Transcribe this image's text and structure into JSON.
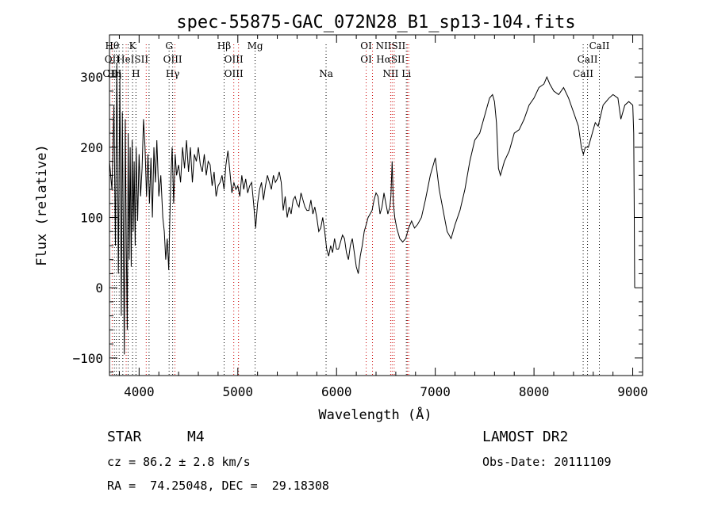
{
  "chart_data": {
    "type": "line",
    "title": "spec-55875-GAC_072N28_B1_sp13-104.fits",
    "xlabel": "Wavelength (Å)",
    "ylabel": "Flux (relative)",
    "xlim": [
      3700,
      9100
    ],
    "ylim": [
      -125,
      360
    ],
    "xticks": [
      4000,
      5000,
      6000,
      7000,
      8000,
      9000
    ],
    "yticks": [
      -100,
      0,
      100,
      200,
      300
    ],
    "xtick_labels": [
      "4000",
      "5000",
      "6000",
      "7000",
      "8000",
      "9000"
    ],
    "ytick_labels": [
      "−100",
      "0",
      "100",
      "200",
      "300"
    ],
    "grid": false,
    "line_color": "#000000",
    "marker_color_absorption": "#000000",
    "marker_color_emission": "#cc0000",
    "series": [
      {
        "values": [
          [
            3700,
            180
          ],
          [
            3725,
            140
          ],
          [
            3745,
            260
          ],
          [
            3760,
            60
          ],
          [
            3775,
            320
          ],
          [
            3790,
            20
          ],
          [
            3805,
            300
          ],
          [
            3820,
            -40
          ],
          [
            3830,
            250
          ],
          [
            3840,
            90
          ],
          [
            3850,
            -95
          ],
          [
            3860,
            240
          ],
          [
            3870,
            60
          ],
          [
            3880,
            -60
          ],
          [
            3890,
            220
          ],
          [
            3900,
            40
          ],
          [
            3910,
            200
          ],
          [
            3920,
            30
          ],
          [
            3930,
            210
          ],
          [
            3940,
            80
          ],
          [
            3950,
            180
          ],
          [
            3960,
            60
          ],
          [
            3970,
            200
          ],
          [
            3985,
            95
          ],
          [
            4000,
            190
          ],
          [
            4015,
            130
          ],
          [
            4030,
            170
          ],
          [
            4045,
            240
          ],
          [
            4060,
            200
          ],
          [
            4075,
            130
          ],
          [
            4090,
            190
          ],
          [
            4105,
            120
          ],
          [
            4120,
            185
          ],
          [
            4135,
            100
          ],
          [
            4150,
            200
          ],
          [
            4165,
            150
          ],
          [
            4180,
            210
          ],
          [
            4200,
            130
          ],
          [
            4220,
            160
          ],
          [
            4240,
            100
          ],
          [
            4255,
            80
          ],
          [
            4270,
            40
          ],
          [
            4285,
            70
          ],
          [
            4300,
            25
          ],
          [
            4310,
            90
          ],
          [
            4320,
            150
          ],
          [
            4335,
            200
          ],
          [
            4350,
            120
          ],
          [
            4365,
            190
          ],
          [
            4380,
            160
          ],
          [
            4400,
            175
          ],
          [
            4420,
            150
          ],
          [
            4440,
            200
          ],
          [
            4460,
            170
          ],
          [
            4480,
            210
          ],
          [
            4500,
            165
          ],
          [
            4520,
            200
          ],
          [
            4540,
            150
          ],
          [
            4560,
            190
          ],
          [
            4580,
            180
          ],
          [
            4600,
            200
          ],
          [
            4620,
            175
          ],
          [
            4640,
            165
          ],
          [
            4660,
            190
          ],
          [
            4680,
            160
          ],
          [
            4700,
            180
          ],
          [
            4720,
            175
          ],
          [
            4740,
            145
          ],
          [
            4760,
            165
          ],
          [
            4780,
            130
          ],
          [
            4800,
            145
          ],
          [
            4820,
            150
          ],
          [
            4840,
            160
          ],
          [
            4860,
            140
          ],
          [
            4880,
            175
          ],
          [
            4900,
            195
          ],
          [
            4920,
            165
          ],
          [
            4940,
            135
          ],
          [
            4960,
            150
          ],
          [
            4980,
            140
          ],
          [
            5000,
            145
          ],
          [
            5020,
            130
          ],
          [
            5040,
            160
          ],
          [
            5060,
            140
          ],
          [
            5080,
            155
          ],
          [
            5100,
            135
          ],
          [
            5120,
            145
          ],
          [
            5140,
            150
          ],
          [
            5160,
            120
          ],
          [
            5180,
            85
          ],
          [
            5200,
            120
          ],
          [
            5220,
            140
          ],
          [
            5240,
            150
          ],
          [
            5260,
            125
          ],
          [
            5280,
            145
          ],
          [
            5300,
            160
          ],
          [
            5320,
            150
          ],
          [
            5340,
            140
          ],
          [
            5360,
            160
          ],
          [
            5380,
            150
          ],
          [
            5400,
            155
          ],
          [
            5420,
            165
          ],
          [
            5440,
            150
          ],
          [
            5460,
            110
          ],
          [
            5480,
            130
          ],
          [
            5500,
            100
          ],
          [
            5520,
            115
          ],
          [
            5540,
            105
          ],
          [
            5560,
            125
          ],
          [
            5580,
            130
          ],
          [
            5600,
            120
          ],
          [
            5620,
            115
          ],
          [
            5640,
            135
          ],
          [
            5660,
            125
          ],
          [
            5680,
            115
          ],
          [
            5700,
            110
          ],
          [
            5720,
            110
          ],
          [
            5740,
            125
          ],
          [
            5760,
            105
          ],
          [
            5780,
            115
          ],
          [
            5800,
            100
          ],
          [
            5820,
            80
          ],
          [
            5840,
            85
          ],
          [
            5860,
            100
          ],
          [
            5880,
            80
          ],
          [
            5900,
            55
          ],
          [
            5920,
            45
          ],
          [
            5940,
            60
          ],
          [
            5960,
            50
          ],
          [
            5980,
            70
          ],
          [
            6000,
            55
          ],
          [
            6020,
            55
          ],
          [
            6040,
            65
          ],
          [
            6060,
            75
          ],
          [
            6080,
            70
          ],
          [
            6100,
            50
          ],
          [
            6120,
            40
          ],
          [
            6140,
            60
          ],
          [
            6160,
            70
          ],
          [
            6180,
            50
          ],
          [
            6200,
            30
          ],
          [
            6220,
            20
          ],
          [
            6240,
            45
          ],
          [
            6260,
            60
          ],
          [
            6280,
            80
          ],
          [
            6300,
            90
          ],
          [
            6320,
            100
          ],
          [
            6340,
            105
          ],
          [
            6360,
            110
          ],
          [
            6380,
            125
          ],
          [
            6400,
            135
          ],
          [
            6420,
            130
          ],
          [
            6440,
            105
          ],
          [
            6460,
            115
          ],
          [
            6480,
            135
          ],
          [
            6500,
            120
          ],
          [
            6520,
            105
          ],
          [
            6540,
            115
          ],
          [
            6550,
            130
          ],
          [
            6563,
            180
          ],
          [
            6575,
            120
          ],
          [
            6590,
            100
          ],
          [
            6610,
            85
          ],
          [
            6640,
            70
          ],
          [
            6670,
            65
          ],
          [
            6700,
            70
          ],
          [
            6730,
            85
          ],
          [
            6760,
            95
          ],
          [
            6790,
            85
          ],
          [
            6820,
            90
          ],
          [
            6860,
            100
          ],
          [
            6900,
            125
          ],
          [
            6950,
            160
          ],
          [
            7000,
            185
          ],
          [
            7040,
            140
          ],
          [
            7080,
            110
          ],
          [
            7120,
            80
          ],
          [
            7160,
            70
          ],
          [
            7200,
            90
          ],
          [
            7250,
            110
          ],
          [
            7300,
            140
          ],
          [
            7350,
            180
          ],
          [
            7400,
            210
          ],
          [
            7450,
            220
          ],
          [
            7500,
            245
          ],
          [
            7550,
            270
          ],
          [
            7580,
            275
          ],
          [
            7600,
            265
          ],
          [
            7620,
            235
          ],
          [
            7640,
            170
          ],
          [
            7660,
            160
          ],
          [
            7700,
            180
          ],
          [
            7750,
            195
          ],
          [
            7800,
            220
          ],
          [
            7850,
            225
          ],
          [
            7900,
            240
          ],
          [
            7950,
            260
          ],
          [
            8000,
            270
          ],
          [
            8050,
            285
          ],
          [
            8100,
            290
          ],
          [
            8130,
            300
          ],
          [
            8160,
            290
          ],
          [
            8200,
            280
          ],
          [
            8250,
            275
          ],
          [
            8300,
            285
          ],
          [
            8350,
            270
          ],
          [
            8400,
            250
          ],
          [
            8450,
            230
          ],
          [
            8480,
            200
          ],
          [
            8500,
            190
          ],
          [
            8520,
            200
          ],
          [
            8550,
            200
          ],
          [
            8580,
            215
          ],
          [
            8620,
            235
          ],
          [
            8650,
            230
          ],
          [
            8700,
            260
          ],
          [
            8760,
            270
          ],
          [
            8800,
            275
          ],
          [
            8850,
            270
          ],
          [
            8880,
            240
          ],
          [
            8920,
            260
          ],
          [
            8960,
            265
          ],
          [
            9000,
            260
          ],
          [
            9010,
            220
          ],
          [
            9015,
            120
          ],
          [
            9020,
            0
          ]
        ]
      }
    ],
    "line_markers": [
      {
        "wl": 3727,
        "labels": [
          "Hθ",
          "OII",
          "OIII"
        ],
        "type": "emission"
      },
      {
        "wl": 3750,
        "labels": [
          "",
          "",
          "Hη"
        ],
        "type": "absorption"
      },
      {
        "wl": 3770,
        "labels": [
          "",
          "",
          ""
        ],
        "type": "absorption"
      },
      {
        "wl": 3798,
        "labels": [
          "",
          "",
          ""
        ],
        "type": "absorption"
      },
      {
        "wl": 3835,
        "labels": [
          "",
          "",
          ""
        ],
        "type": "absorption"
      },
      {
        "wl": 3869,
        "labels": [
          "",
          "",
          ""
        ],
        "type": "emission"
      },
      {
        "wl": 3889,
        "labels": [
          "",
          "",
          ""
        ],
        "type": "absorption"
      },
      {
        "wl": 3934,
        "labels": [
          "K",
          "HeISII",
          ""
        ],
        "type": "absorption"
      },
      {
        "wl": 3968,
        "labels": [
          "",
          "",
          "H"
        ],
        "type": "absorption"
      },
      {
        "wl": 4072,
        "labels": [
          "",
          "",
          ""
        ],
        "type": "emission"
      },
      {
        "wl": 4101,
        "labels": [
          "",
          "",
          ""
        ],
        "type": "absorption"
      },
      {
        "wl": 4304,
        "labels": [
          "G",
          "",
          ""
        ],
        "type": "absorption"
      },
      {
        "wl": 4340,
        "labels": [
          "",
          "OIII",
          "Hγ"
        ],
        "type": "absorption"
      },
      {
        "wl": 4363,
        "labels": [
          "",
          "",
          ""
        ],
        "type": "emission"
      },
      {
        "wl": 4861,
        "labels": [
          "Hβ",
          "",
          ""
        ],
        "type": "absorption"
      },
      {
        "wl": 4959,
        "labels": [
          "",
          "OIII",
          "OIII"
        ],
        "type": "emission"
      },
      {
        "wl": 5007,
        "labels": [
          "",
          "",
          ""
        ],
        "type": "emission"
      },
      {
        "wl": 5175,
        "labels": [
          "Mg",
          "",
          ""
        ],
        "type": "absorption"
      },
      {
        "wl": 5894,
        "labels": [
          "",
          "",
          "Na"
        ],
        "type": "absorption"
      },
      {
        "wl": 6300,
        "labels": [
          "OI",
          "OI",
          ""
        ],
        "type": "emission"
      },
      {
        "wl": 6364,
        "labels": [
          "",
          "",
          ""
        ],
        "type": "emission"
      },
      {
        "wl": 6548,
        "labels": [
          "NIISII",
          "HαSII",
          "NII"
        ],
        "type": "emission"
      },
      {
        "wl": 6563,
        "labels": [
          "",
          "",
          ""
        ],
        "type": "emission"
      },
      {
        "wl": 6584,
        "labels": [
          "",
          "",
          ""
        ],
        "type": "emission"
      },
      {
        "wl": 6707,
        "labels": [
          "",
          "",
          "Li"
        ],
        "type": "absorption"
      },
      {
        "wl": 6717,
        "labels": [
          "",
          "",
          ""
        ],
        "type": "emission"
      },
      {
        "wl": 6731,
        "labels": [
          "",
          "",
          ""
        ],
        "type": "emission"
      },
      {
        "wl": 8498,
        "labels": [
          "",
          "",
          "CaII"
        ],
        "type": "absorption"
      },
      {
        "wl": 8542,
        "labels": [
          "",
          "CaII",
          ""
        ],
        "type": "absorption"
      },
      {
        "wl": 8662,
        "labels": [
          "CaII",
          "",
          ""
        ],
        "type": "absorption"
      }
    ]
  },
  "info": {
    "class_label": "STAR",
    "subclass": "M4",
    "cz_line": "cz = 86.2 ± 2.8 km/s",
    "coords_line": "RA =  74.25048, DEC =  29.18308",
    "survey": "LAMOST DR2",
    "obs_date": "Obs-Date: 20111109"
  }
}
